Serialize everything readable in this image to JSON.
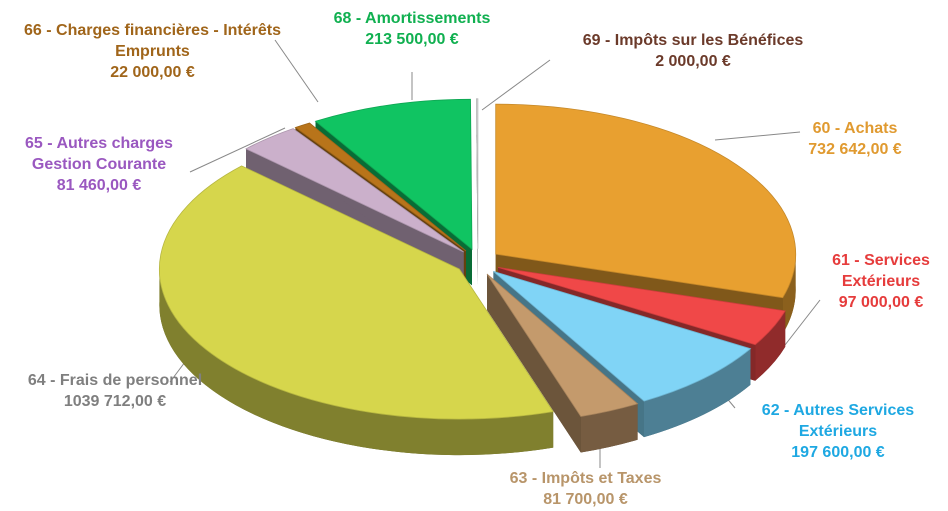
{
  "chart_data": {
    "type": "pie",
    "categories": [
      "60 - Achats",
      "61 - Services Extérieurs",
      "62 - Autres Services Extérieurs",
      "63 - Impôts et Taxes",
      "64 - Frais de personnel",
      "65 - Autres charges Gestion Courante",
      "66 - Charges financières - Intérêts Emprunts",
      "68 - Amortissements",
      "69 - Impôts sur les Bénéfices"
    ],
    "values": [
      732642,
      97000,
      197600,
      81700,
      1039712,
      81460,
      22000,
      213500,
      2000
    ],
    "value_labels": [
      "732 642,00 €",
      "97 000,00 €",
      "197 600,00 €",
      "81 700,00 €",
      "1039 712,00 €",
      "81 460,00 €",
      "22 000,00 €",
      "213 500,00 €",
      "2 000,00 €"
    ],
    "colors": [
      "#e8a030",
      "#f04848",
      "#80d4f6",
      "#c49a6c",
      "#d6d64c",
      "#cbb0cb",
      "#b8741a",
      "#10c462",
      "#d8d8d8"
    ],
    "label_colors": [
      "#e09a30",
      "#e63c3c",
      "#1ea8e2",
      "#b8956a",
      "#7f7f7f",
      "#9a58c0",
      "#a0651a",
      "#10b050",
      "#6b3a2a"
    ]
  }
}
